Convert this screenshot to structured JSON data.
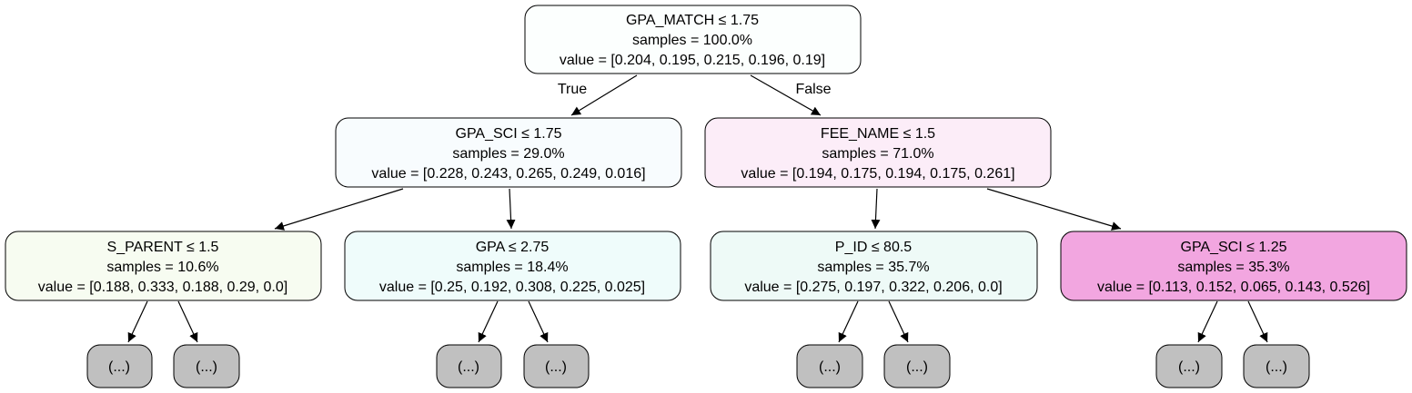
{
  "tree": {
    "root": {
      "condition": "GPA_MATCH ≤ 1.75",
      "samples": "samples = 100.0%",
      "value": "value = [0.204, 0.195, 0.215, 0.196, 0.19]",
      "fill": "#fcfffe"
    },
    "edge_labels": {
      "left": "True",
      "right": "False"
    },
    "level1": [
      {
        "condition": "GPA_SCI ≤ 1.75",
        "samples": "samples = 29.0%",
        "value": "value = [0.228, 0.243, 0.265, 0.249, 0.016]",
        "fill": "#f8fcfe"
      },
      {
        "condition": "FEE_NAME ≤ 1.5",
        "samples": "samples = 71.0%",
        "value": "value = [0.194, 0.175, 0.194, 0.175, 0.261]",
        "fill": "#fcedf8"
      }
    ],
    "level2": [
      {
        "condition": "S_PARENT ≤ 1.5",
        "samples": "samples = 10.6%",
        "value": "value = [0.188, 0.333, 0.188, 0.29, 0.0]",
        "fill": "#f7fcf1"
      },
      {
        "condition": "GPA ≤ 2.75",
        "samples": "samples = 18.4%",
        "value": "value = [0.25, 0.192, 0.308, 0.225, 0.025]",
        "fill": "#effcfb"
      },
      {
        "condition": "P_ID ≤ 80.5",
        "samples": "samples = 35.7%",
        "value": "value = [0.275, 0.197, 0.322, 0.206, 0.0]",
        "fill": "#eefaf7"
      },
      {
        "condition": "GPA_SCI ≤ 1.25",
        "samples": "samples = 35.3%",
        "value": "value = [0.113, 0.152, 0.065, 0.143, 0.526]",
        "fill": "#f2a6e0"
      }
    ],
    "leaf_label": "(...)",
    "leaf_fill": "#c0c0c0"
  }
}
